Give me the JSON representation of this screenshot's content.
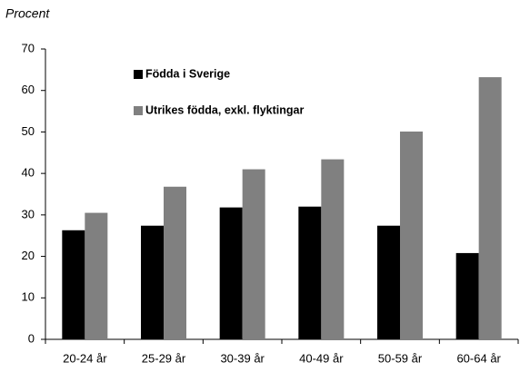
{
  "chart_data": {
    "type": "bar",
    "y_label": "Procent",
    "categories": [
      "20-24 år",
      "25-29 år",
      "30-39 år",
      "40-49 år",
      "50-59 år",
      "60-64 år"
    ],
    "series": [
      {
        "name": "Födda i Sverige",
        "color": "#000000",
        "values": [
          26.3,
          27.4,
          31.8,
          32.0,
          27.4,
          20.8
        ]
      },
      {
        "name": "Utrikes födda, exkl. flyktingar",
        "color": "#808080",
        "values": [
          30.5,
          36.8,
          41.0,
          43.4,
          50.1,
          63.2
        ]
      }
    ],
    "ylim": [
      0,
      70
    ],
    "yticks": [
      0,
      10,
      20,
      30,
      40,
      50,
      60,
      70
    ],
    "grid": false,
    "legend": "top-left"
  }
}
